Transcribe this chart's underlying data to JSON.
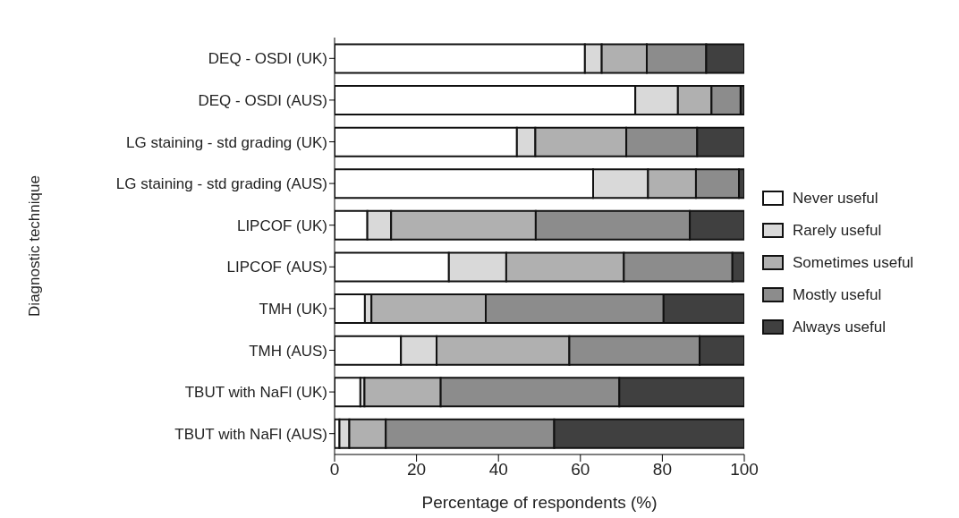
{
  "chart_data": {
    "type": "bar",
    "orientation": "horizontal",
    "stacked": true,
    "xlabel": "Percentage of respondents (%)",
    "ylabel": "Diagnostic technique",
    "categories": [
      "DEQ - OSDI (UK)",
      "DEQ - OSDI (AUS)",
      "LG staining - std grading (UK)",
      "LG staining - std grading (AUS)",
      "LIPCOF (UK)",
      "LIPCOF (AUS)",
      "TMH (UK)",
      "TMH (AUS)",
      "TBUT with NaFl (UK)",
      "TBUT with NaFl (AUS)"
    ],
    "series": [
      {
        "name": "Never useful",
        "color": "#ffffff",
        "values": [
          61.1,
          73.4,
          44.5,
          63.1,
          8.0,
          27.9,
          7.4,
          16.2,
          6.3,
          1.2
        ]
      },
      {
        "name": "Rarely useful",
        "color": "#d9d9d9",
        "values": [
          4.1,
          10.4,
          4.5,
          13.4,
          5.8,
          14.0,
          1.6,
          8.7,
          1.0,
          2.4
        ]
      },
      {
        "name": "Sometimes useful",
        "color": "#b0b0b0",
        "values": [
          11.0,
          8.2,
          22.2,
          11.7,
          35.3,
          28.7,
          27.9,
          32.4,
          18.6,
          8.9
        ]
      },
      {
        "name": "Mostly useful",
        "color": "#8c8c8c",
        "values": [
          14.5,
          7.1,
          17.3,
          10.5,
          37.6,
          26.5,
          43.4,
          31.8,
          43.6,
          41.1
        ]
      },
      {
        "name": "Always useful",
        "color": "#404040",
        "values": [
          9.3,
          0.9,
          11.5,
          1.3,
          13.3,
          2.9,
          19.7,
          10.9,
          30.5,
          46.4
        ]
      }
    ],
    "xlim": [
      0,
      100
    ],
    "xticks": [
      0,
      20,
      40,
      60,
      80,
      100
    ],
    "grid": false,
    "legend": "right"
  }
}
